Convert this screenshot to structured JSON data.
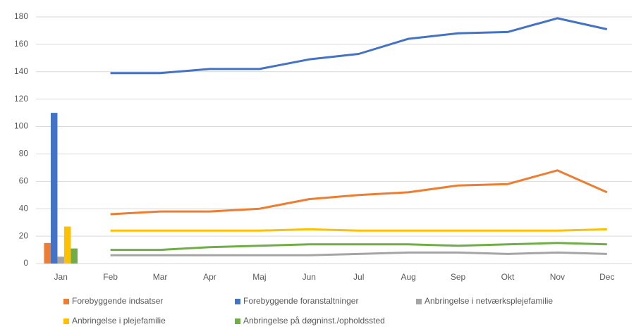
{
  "chart_data": {
    "type": "bar-line",
    "categories": [
      "Jan",
      "Feb",
      "Mar",
      "Apr",
      "Maj",
      "Jun",
      "Jul",
      "Aug",
      "Sep",
      "Okt",
      "Nov",
      "Dec"
    ],
    "series": [
      {
        "name": "Forebyggende indsatser",
        "color": "#ed7d31",
        "values": [
          15,
          36,
          38,
          38,
          40,
          47,
          50,
          52,
          57,
          58,
          68,
          52
        ]
      },
      {
        "name": "Forebyggende foranstaltninger",
        "color": "#4472c4",
        "values": [
          110,
          139,
          139,
          142,
          142,
          149,
          153,
          164,
          168,
          169,
          179,
          171
        ]
      },
      {
        "name": "Anbringelse i netværksplejefamilie",
        "color": "#a5a5a5",
        "values": [
          5,
          6,
          6,
          6,
          6,
          6,
          7,
          8,
          8,
          7,
          8,
          7
        ]
      },
      {
        "name": "Anbringelse i plejefamilie",
        "color": "#ffc000",
        "values": [
          27,
          24,
          24,
          24,
          24,
          25,
          24,
          24,
          24,
          24,
          24,
          25
        ]
      },
      {
        "name": "Anbringelse på døgninst./opholdssted",
        "color": "#70ad47",
        "values": [
          11,
          10,
          10,
          12,
          13,
          14,
          14,
          14,
          13,
          14,
          15,
          14
        ]
      }
    ],
    "ylim": [
      0,
      180
    ],
    "yticks": [
      0,
      20,
      40,
      60,
      80,
      100,
      120,
      140,
      160,
      180
    ],
    "grid": true,
    "legend": "bottom"
  }
}
